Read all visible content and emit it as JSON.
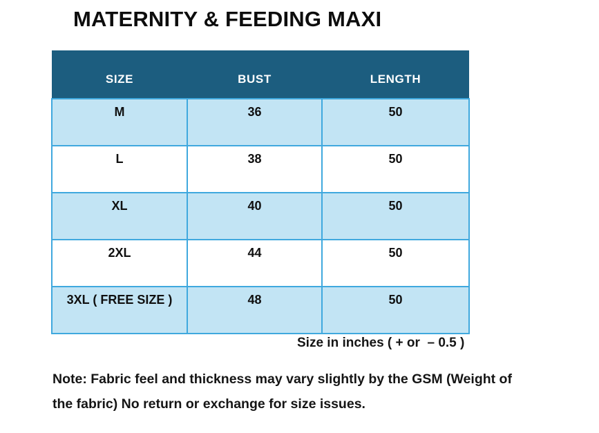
{
  "page_title": "MATERNITY & FEEDING MAXI",
  "size_chart": {
    "columns": [
      "SIZE",
      "BUST",
      "LENGTH"
    ],
    "rows": [
      [
        "M",
        "36",
        "50"
      ],
      [
        "L",
        "38",
        "50"
      ],
      [
        "XL",
        "40",
        "50"
      ],
      [
        "2XL",
        "44",
        "50"
      ],
      [
        "3XL ( FREE SIZE )",
        "48",
        "50"
      ]
    ]
  },
  "size_note": "Size in inches ( + or  – 0.5 )",
  "fabric_note": {
    "line1": "Note: Fabric feel and thickness may vary slightly by the GSM (Weight of",
    "line2": "the fabric) No return or exchange for size issues."
  },
  "colors": {
    "header_bg": "#1c5d7f",
    "header_text": "#ffffff",
    "row_highlight_bg": "#c2e4f4",
    "row_plain_bg": "#ffffff",
    "cell_border": "#3fa8de",
    "text": "#161616"
  }
}
